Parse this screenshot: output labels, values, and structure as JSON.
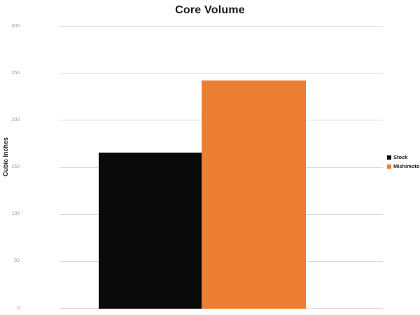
{
  "chart_data": {
    "type": "bar",
    "title": "Core Volume",
    "xlabel": "",
    "ylabel": "Cubic Inches",
    "categories": [
      ""
    ],
    "series": [
      {
        "name": "Stock",
        "color": "#0a0a0a",
        "values": [
          165
        ]
      },
      {
        "name": "Mishimoto",
        "color": "#ed7d31",
        "values": [
          242
        ]
      }
    ],
    "ylim": [
      0,
      300
    ],
    "yticks": [
      0,
      50,
      100,
      150,
      200,
      250,
      300
    ],
    "grid": true,
    "gridline_color": "#d9d9d9",
    "tick_label_color": "#9b9b9b",
    "legend_position": "right",
    "legend_labels": [
      "Stock",
      "Mishimoto"
    ]
  }
}
